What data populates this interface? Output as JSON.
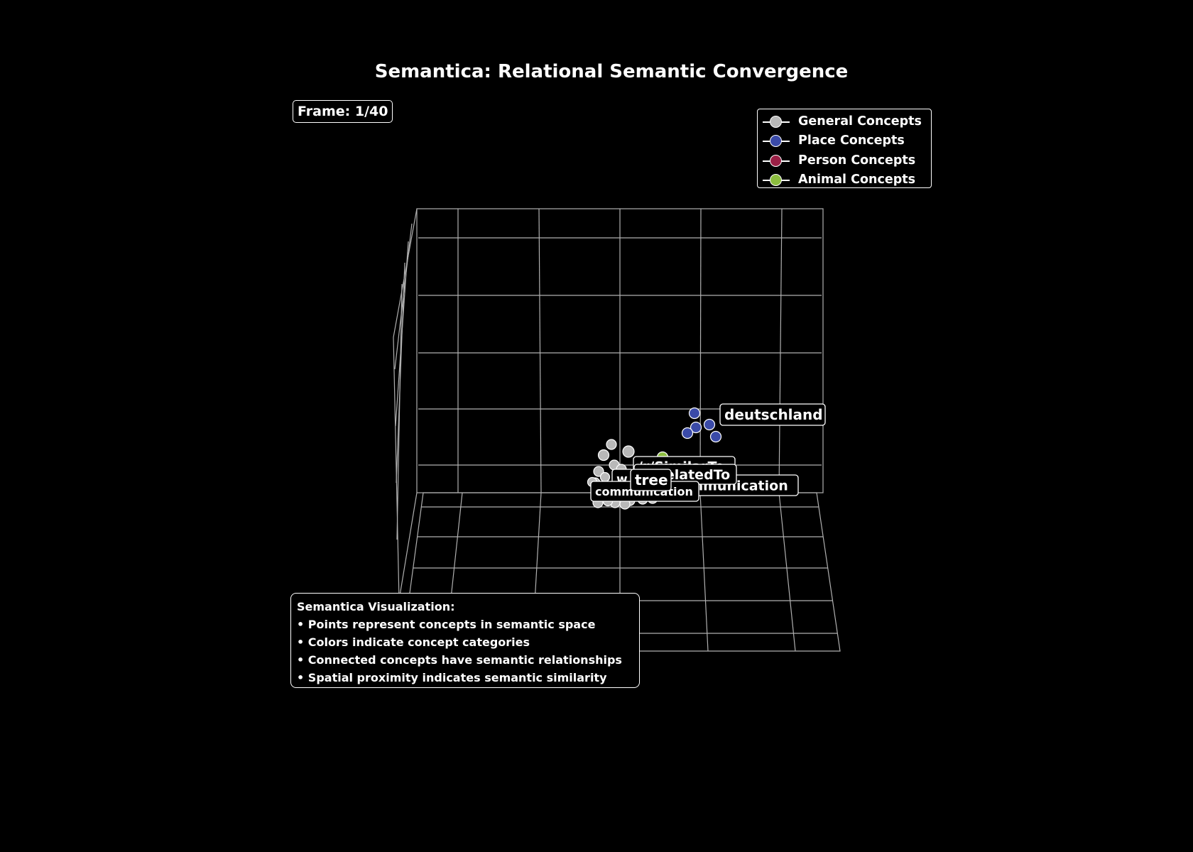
{
  "chart_data": {
    "type": "scatter",
    "title": "Semantica: Relational Semantic Convergence",
    "frame_label": "Frame: 1/40",
    "legend": [
      {
        "name": "General Concepts",
        "color": "#b8b8b8"
      },
      {
        "name": "Place Concepts",
        "color": "#3a4aa8"
      },
      {
        "name": "Person Concepts",
        "color": "#9a1f45"
      },
      {
        "name": "Animal Concepts",
        "color": "#8cbd3f"
      }
    ],
    "point_labels": [
      "deutschland",
      "/r/SimilarTo",
      "/r/RelatedTo",
      "communication",
      "tree",
      "w",
      "communication"
    ],
    "info": {
      "heading": "Semantica Visualization:",
      "lines": [
        "• Points represent concepts in semantic space",
        "• Colors indicate concept categories",
        "• Connected concepts have semantic relationships",
        "• Spatial proximity indicates semantic similarity"
      ]
    }
  }
}
